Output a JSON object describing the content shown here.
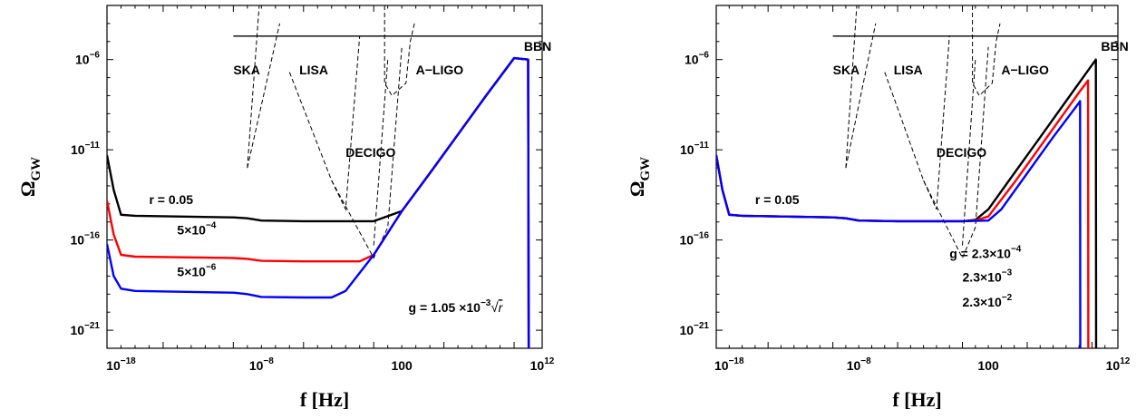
{
  "chart_data": [
    {
      "type": "line",
      "title": "",
      "xlabel": "f [Hz]",
      "ylabel": "Ω_GW",
      "xscale": "log",
      "yscale": "log",
      "xlim": [
        1e-19,
        1000000000000.0
      ],
      "ylim": [
        1e-22,
        0.001
      ],
      "grid": false,
      "x_ticks": [
        {
          "value": 1e-18,
          "base": "10",
          "exp": "−18"
        },
        {
          "value": 1e-08,
          "base": "10",
          "exp": "−8"
        },
        {
          "value": 100,
          "base": "100",
          "exp": ""
        },
        {
          "value": 1000000000000.0,
          "base": "10",
          "exp": "12"
        }
      ],
      "y_ticks": [
        {
          "value": 1e-06,
          "base": "10",
          "exp": "−6"
        },
        {
          "value": 1e-11,
          "base": "10",
          "exp": "−11"
        },
        {
          "value": 1e-16,
          "base": "10",
          "exp": "−16"
        },
        {
          "value": 1e-21,
          "base": "10",
          "exp": "−21"
        }
      ],
      "series": [
        {
          "color": "#000000",
          "points": [
            [
              1e-19,
              5e-12
            ],
            [
              3e-19,
              6e-14
            ],
            [
              1e-18,
              2.5e-15
            ],
            [
              1e-17,
              2.2e-15
            ],
            [
              1e-10,
              1.8e-15
            ],
            [
              1e-09,
              1.6e-15
            ],
            [
              1e-08,
              1.2e-15
            ],
            [
              1e-05,
              1.1e-15
            ],
            [
              1,
              1.1e-15
            ],
            [
              100,
              4e-15
            ],
            [
              10000.0,
              5e-13
            ],
            [
              1000000.0,
              7e-11
            ],
            [
              100000000.0,
              1e-08
            ],
            [
              10000000000.0,
              1.2e-06
            ],
            [
              100000000000.0,
              1e-06
            ],
            [
              110000000000.0,
              1e-23
            ]
          ]
        },
        {
          "color": "#ff0000",
          "points": [
            [
              1e-19,
              1.5e-14
            ],
            [
              3e-19,
              2e-16
            ],
            [
              1e-18,
              1.5e-17
            ],
            [
              1e-17,
              1.2e-17
            ],
            [
              1e-10,
              1e-17
            ],
            [
              1e-09,
              9e-18
            ],
            [
              1e-08,
              7e-18
            ],
            [
              1e-05,
              6.5e-18
            ],
            [
              0.1,
              6.5e-18
            ],
            [
              1,
              1.5e-17
            ],
            [
              100,
              4e-15
            ],
            [
              10000.0,
              5e-13
            ],
            [
              1000000.0,
              7e-11
            ],
            [
              100000000.0,
              1e-08
            ],
            [
              10000000000.0,
              1.2e-06
            ],
            [
              100000000000.0,
              1e-06
            ],
            [
              110000000000.0,
              1e-23
            ]
          ]
        },
        {
          "color": "#0000ff",
          "points": [
            [
              1e-19,
              6e-17
            ],
            [
              3e-19,
              1e-18
            ],
            [
              1e-18,
              2e-19
            ],
            [
              1e-17,
              1.5e-19
            ],
            [
              1e-10,
              1.2e-19
            ],
            [
              1e-09,
              1e-19
            ],
            [
              1e-08,
              7e-20
            ],
            [
              1e-05,
              6.5e-20
            ],
            [
              0.001,
              6.5e-20
            ],
            [
              0.01,
              1.5e-19
            ],
            [
              1,
              1.5e-17
            ],
            [
              100,
              4e-15
            ],
            [
              10000.0,
              5e-13
            ],
            [
              1000000.0,
              7e-11
            ],
            [
              100000000.0,
              1e-08
            ],
            [
              10000000000.0,
              1.2e-06
            ],
            [
              100000000000.0,
              1e-06
            ],
            [
              110000000000.0,
              1e-23
            ]
          ]
        }
      ],
      "annotations": [
        {
          "text": "r = 0.05",
          "x": 1e-16,
          "y": 1e-14
        },
        {
          "text": "5×10",
          "sup": "−4",
          "x": 1e-14,
          "y": 2e-16
        },
        {
          "text": "5×10",
          "sup": "−6",
          "x": 1e-14,
          "y": 1e-18
        },
        {
          "text": "g = 1.05 ×10",
          "sup": "−3",
          "root": "r",
          "x": 300.0,
          "y": 1e-20
        },
        {
          "text": "BBN",
          "x": 50000000000.0,
          "y": 3e-06
        },
        {
          "text": "SKA",
          "x": 1e-10,
          "y": 1.5e-07
        },
        {
          "text": "LISA",
          "x": 5e-06,
          "y": 1.5e-07
        },
        {
          "text": "A−LIGO",
          "x": 1000.0,
          "y": 1.5e-07
        },
        {
          "text": "DECIGO",
          "x": 0.01,
          "y": 4e-12
        }
      ]
    },
    {
      "type": "line",
      "title": "",
      "xlabel": "f [Hz]",
      "ylabel": "Ω_GW",
      "xscale": "log",
      "yscale": "log",
      "xlim": [
        1e-19,
        1000000000000.0
      ],
      "ylim": [
        1e-22,
        0.001
      ],
      "grid": false,
      "x_ticks": [
        {
          "value": 1e-18,
          "base": "10",
          "exp": "−18"
        },
        {
          "value": 1e-08,
          "base": "10",
          "exp": "−8"
        },
        {
          "value": 100,
          "base": "100",
          "exp": ""
        },
        {
          "value": 1000000000000.0,
          "base": "10",
          "exp": "12"
        }
      ],
      "y_ticks": [
        {
          "value": 1e-06,
          "base": "10",
          "exp": "−6"
        },
        {
          "value": 1e-11,
          "base": "10",
          "exp": "−11"
        },
        {
          "value": 1e-16,
          "base": "10",
          "exp": "−16"
        },
        {
          "value": 1e-21,
          "base": "10",
          "exp": "−21"
        }
      ],
      "series": [
        {
          "color": "#000000",
          "points": [
            [
              1e-19,
              5e-12
            ],
            [
              3e-19,
              6e-14
            ],
            [
              1e-18,
              2.5e-15
            ],
            [
              1e-17,
              2.2e-15
            ],
            [
              1e-10,
              1.8e-15
            ],
            [
              1e-09,
              1.6e-15
            ],
            [
              1e-08,
              1.2e-15
            ],
            [
              1e-05,
              1.1e-15
            ],
            [
              1,
              1.1e-15
            ],
            [
              10,
              1.3e-15
            ],
            [
              100,
              5e-15
            ],
            [
              10000.0,
              5e-13
            ],
            [
              1000000.0,
              5e-11
            ],
            [
              100000000.0,
              5e-09
            ],
            [
              10000000000.0,
              5e-07
            ],
            [
              20000000000.0,
              1e-06
            ],
            [
              21000000000.0,
              1e-23
            ]
          ]
        },
        {
          "color": "#ff0000",
          "points": [
            [
              1e-19,
              5e-12
            ],
            [
              3e-19,
              6e-14
            ],
            [
              1e-18,
              2.5e-15
            ],
            [
              1e-17,
              2.2e-15
            ],
            [
              1e-10,
              1.8e-15
            ],
            [
              1e-09,
              1.6e-15
            ],
            [
              1e-08,
              1.2e-15
            ],
            [
              1e-05,
              1.1e-15
            ],
            [
              1,
              1.1e-15
            ],
            [
              10,
              1.2e-15
            ],
            [
              100,
              2e-15
            ],
            [
              10000.0,
              1.5e-13
            ],
            [
              1000000.0,
              1.5e-11
            ],
            [
              100000000.0,
              1.5e-09
            ],
            [
              1000000000.0,
              1.5e-08
            ],
            [
              5000000000.0,
              7e-08
            ],
            [
              5200000000.0,
              1e-23
            ]
          ]
        },
        {
          "color": "#0000ff",
          "points": [
            [
              1e-19,
              5e-12
            ],
            [
              3e-19,
              6e-14
            ],
            [
              1e-18,
              2.5e-15
            ],
            [
              1e-17,
              2.2e-15
            ],
            [
              1e-10,
              1.8e-15
            ],
            [
              1e-09,
              1.6e-15
            ],
            [
              1e-08,
              1.2e-15
            ],
            [
              1e-05,
              1.1e-15
            ],
            [
              1,
              1.1e-15
            ],
            [
              100,
              1.2e-15
            ],
            [
              1000.0,
              5e-15
            ],
            [
              100000.0,
              5e-13
            ],
            [
              10000000.0,
              5e-11
            ],
            [
              1000000000.0,
              4e-09
            ],
            [
              1200000000.0,
              5e-09
            ],
            [
              1250000000.0,
              1e-23
            ]
          ]
        }
      ],
      "annotations": [
        {
          "text": "r = 0.05",
          "x": 1e-16,
          "y": 1e-14
        },
        {
          "text": "g = 2.3×10",
          "sup": "−4",
          "x": 0.1,
          "y": 1e-17
        },
        {
          "text": "2.3×10",
          "sup": "−3",
          "x": 1,
          "y": 5e-19
        },
        {
          "text": "2.3×10",
          "sup": "−2",
          "x": 1,
          "y": 2e-20
        },
        {
          "text": "BBN",
          "x": 50000000000.0,
          "y": 3e-06
        },
        {
          "text": "SKA",
          "x": 1e-10,
          "y": 1.5e-07
        },
        {
          "text": "LISA",
          "x": 5e-06,
          "y": 1.5e-07
        },
        {
          "text": "A−LIGO",
          "x": 1000.0,
          "y": 1.5e-07
        },
        {
          "text": "DECIGO",
          "x": 0.01,
          "y": 4e-12
        }
      ]
    }
  ],
  "sensitivity": {
    "bbn_level": 2e-05,
    "bbn_fmin": 1e-10,
    "ska": [
      [
        1e-09,
        1e-12
      ],
      [
        7e-09,
        0.001
      ]
    ],
    "ska_arm": [
      [
        1e-09,
        1e-12
      ],
      [
        2e-07,
        0.0001
      ]
    ],
    "lisa": [
      [
        1e-06,
        2e-07
      ],
      [
        0.001,
        2e-13
      ],
      [
        0.01,
        5e-15
      ],
      [
        0.1,
        2e-05
      ]
    ],
    "decigo": [
      [
        0.001,
        2e-13
      ],
      [
        1,
        1e-17
      ],
      [
        10,
        5e-16
      ],
      [
        100,
        5e-06
      ]
    ],
    "decigo_arm": [
      [
        1,
        5e-17
      ],
      [
        10,
        1e-06
      ]
    ],
    "aligo": [
      [
        6,
        0.001
      ],
      [
        6,
        5e-08
      ],
      [
        20,
        1e-08
      ],
      [
        200,
        5e-08
      ],
      [
        400,
        1e-05
      ],
      [
        800,
        0.0001
      ]
    ]
  }
}
